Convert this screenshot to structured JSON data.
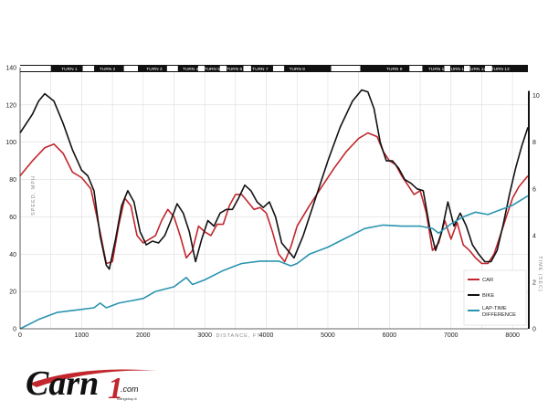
{
  "chart_data": {
    "type": "line",
    "title": "",
    "xlabel": "DISTANCE, FT.",
    "ylabel": "SPEED, MPH",
    "y2label": "TIME (SEC)",
    "xlim": [
      0,
      8250
    ],
    "ylim": [
      0,
      140
    ],
    "y2lim": [
      0,
      11.2
    ],
    "x_ticks": [
      0,
      1000,
      2000,
      3000,
      4000,
      5000,
      6000,
      7000,
      8000
    ],
    "y_ticks": [
      0,
      20,
      40,
      60,
      80,
      100,
      120,
      140
    ],
    "y2_ticks": [
      0,
      2,
      4,
      6,
      8,
      10
    ],
    "grid": true,
    "legend_position": "bottom-right",
    "turns": [
      {
        "label": "TURN 1",
        "x": 800
      },
      {
        "label": "TURN 2",
        "x": 1420
      },
      {
        "label": "TURN 3",
        "x": 2180
      },
      {
        "label": "TURN 4",
        "x": 2770
      },
      {
        "label": "TURN 5",
        "x": 3120
      },
      {
        "label": "TURN 6",
        "x": 3480
      },
      {
        "label": "TURN 7",
        "x": 3900
      },
      {
        "label": "TURN 8",
        "x": 4500
      },
      {
        "label": "TURN 9",
        "x": 6080
      },
      {
        "label": "TURN 10",
        "x": 6780
      },
      {
        "label": "TURN 11",
        "x": 7100
      },
      {
        "label": "TURN 12",
        "x": 7420
      },
      {
        "label": "TURN 13",
        "x": 7800
      }
    ],
    "series": [
      {
        "name": "CAR",
        "color": "#c1272d",
        "axis": "left",
        "x": [
          0,
          200,
          400,
          550,
          700,
          850,
          1000,
          1150,
          1300,
          1400,
          1500,
          1600,
          1700,
          1800,
          1900,
          2000,
          2100,
          2200,
          2300,
          2400,
          2500,
          2600,
          2700,
          2800,
          2900,
          3000,
          3100,
          3200,
          3300,
          3400,
          3500,
          3600,
          3700,
          3800,
          3900,
          4000,
          4100,
          4200,
          4300,
          4400,
          4500,
          4700,
          4900,
          5100,
          5300,
          5500,
          5650,
          5800,
          5900,
          6000,
          6100,
          6200,
          6300,
          6400,
          6500,
          6600,
          6700,
          6800,
          6900,
          7000,
          7100,
          7200,
          7300,
          7400,
          7500,
          7600,
          7700,
          7800,
          7900,
          8000,
          8100,
          8250
        ],
        "values": [
          82,
          90,
          97,
          99,
          94,
          84,
          81,
          75,
          52,
          35,
          36,
          55,
          70,
          66,
          50,
          46,
          48,
          50,
          58,
          64,
          60,
          50,
          38,
          42,
          55,
          52,
          50,
          56,
          56,
          66,
          72,
          72,
          68,
          64,
          65,
          62,
          52,
          40,
          36,
          44,
          55,
          66,
          76,
          86,
          95,
          102,
          105,
          103,
          95,
          90,
          88,
          82,
          77,
          72,
          74,
          62,
          42,
          46,
          58,
          48,
          57,
          45,
          42,
          38,
          35,
          35,
          40,
          50,
          60,
          70,
          76,
          82
        ]
      },
      {
        "name": "BIKE",
        "color": "#111111",
        "axis": "left",
        "x": [
          0,
          200,
          300,
          400,
          550,
          700,
          850,
          1000,
          1100,
          1200,
          1300,
          1400,
          1450,
          1550,
          1650,
          1750,
          1850,
          1950,
          2050,
          2150,
          2250,
          2350,
          2450,
          2550,
          2650,
          2750,
          2850,
          2950,
          3050,
          3150,
          3250,
          3350,
          3450,
          3550,
          3650,
          3750,
          3850,
          3950,
          4050,
          4150,
          4250,
          4350,
          4450,
          4600,
          4800,
          5000,
          5200,
          5400,
          5550,
          5650,
          5750,
          5850,
          5950,
          6050,
          6150,
          6250,
          6350,
          6450,
          6550,
          6650,
          6750,
          6850,
          6950,
          7050,
          7150,
          7250,
          7350,
          7450,
          7550,
          7650,
          7750,
          7850,
          7950,
          8050,
          8150,
          8250
        ],
        "values": [
          105,
          115,
          122,
          126,
          122,
          110,
          96,
          85,
          82,
          74,
          50,
          34,
          32,
          48,
          66,
          74,
          68,
          52,
          45,
          47,
          46,
          50,
          58,
          67,
          62,
          52,
          36,
          48,
          58,
          55,
          62,
          64,
          64,
          70,
          77,
          74,
          68,
          65,
          68,
          60,
          46,
          42,
          38,
          50,
          70,
          90,
          108,
          122,
          128,
          127,
          118,
          100,
          90,
          90,
          86,
          80,
          78,
          75,
          74,
          55,
          42,
          52,
          68,
          55,
          62,
          55,
          45,
          40,
          36,
          36,
          42,
          56,
          72,
          86,
          98,
          108
        ]
      },
      {
        "name": "LAP-TIME DIFFERENCE",
        "color": "#2a94b0",
        "axis": "right",
        "x": [
          0,
          300,
          600,
          900,
          1200,
          1300,
          1400,
          1600,
          1800,
          2000,
          2200,
          2500,
          2700,
          2800,
          3000,
          3300,
          3600,
          3900,
          4200,
          4400,
          4500,
          4700,
          5000,
          5300,
          5600,
          5900,
          6200,
          6500,
          6700,
          6800,
          6900,
          7000,
          7200,
          7400,
          7600,
          7800,
          8000,
          8250
        ],
        "values": [
          0,
          0.4,
          0.7,
          0.8,
          0.9,
          1.1,
          0.9,
          1.1,
          1.2,
          1.3,
          1.6,
          1.8,
          2.2,
          1.9,
          2.1,
          2.5,
          2.8,
          2.9,
          2.9,
          2.7,
          2.8,
          3.2,
          3.5,
          3.9,
          4.3,
          4.45,
          4.4,
          4.4,
          4.3,
          4.1,
          4.3,
          4.5,
          4.8,
          5.0,
          4.9,
          5.1,
          5.3,
          5.7
        ]
      }
    ]
  },
  "logo": {
    "brand_text": "Carn",
    "brand_tail": "1",
    "domain_text": ".com",
    "tagline": "ridingshop.it"
  }
}
